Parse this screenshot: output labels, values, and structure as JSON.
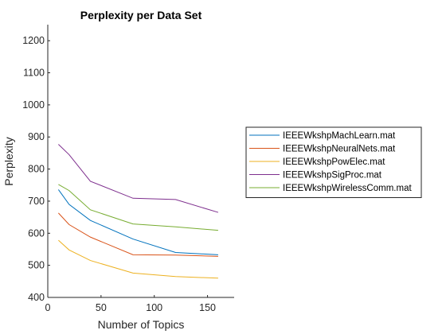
{
  "chart_data": {
    "type": "line",
    "title": "Perplexity per Data Set",
    "xlabel": "Number of Topics",
    "ylabel": "Perplexity",
    "xlim": [
      0,
      175
    ],
    "ylim": [
      400,
      1250
    ],
    "xticks": [
      0,
      50,
      100,
      150
    ],
    "yticks": [
      400,
      500,
      600,
      700,
      800,
      900,
      1000,
      1100,
      1200
    ],
    "grid": false,
    "legend_position": "right",
    "x": [
      10,
      20,
      40,
      80,
      120,
      160
    ],
    "series": [
      {
        "name": "IEEEWkshpMachLearn.mat",
        "color": "#0072BD",
        "values": [
          736,
          690,
          640,
          582,
          540,
          533
        ]
      },
      {
        "name": "IEEEWkshpNeuralNets.mat",
        "color": "#D95319",
        "values": [
          663,
          627,
          588,
          533,
          532,
          528
        ]
      },
      {
        "name": "IEEEWkshpPowElec.mat",
        "color": "#EDB120",
        "values": [
          578,
          548,
          515,
          476,
          465,
          460
        ]
      },
      {
        "name": "IEEEWkshpSigProc.mat",
        "color": "#7E2F8E",
        "values": [
          877,
          845,
          762,
          709,
          705,
          665
        ]
      },
      {
        "name": "IEEEWkshpWirelessComm.mat",
        "color": "#77AC30",
        "values": [
          752,
          733,
          673,
          629,
          620,
          609
        ]
      }
    ]
  }
}
